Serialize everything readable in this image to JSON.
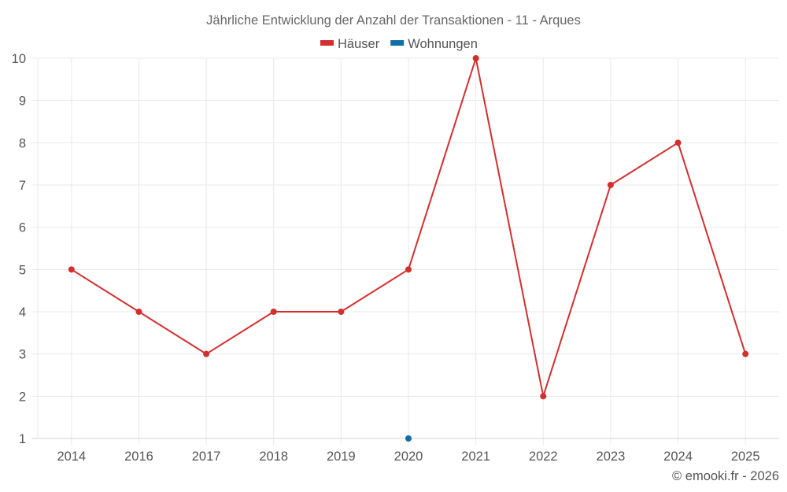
{
  "chart_data": {
    "type": "line",
    "title": "Jährliche Entwicklung der Anzahl der Transaktionen - 11 - Arques",
    "xlabel": "",
    "ylabel": "",
    "categories": [
      "2014",
      "2016",
      "2017",
      "2018",
      "2019",
      "2020",
      "2021",
      "2022",
      "2023",
      "2024",
      "2025"
    ],
    "ylim": [
      1,
      10
    ],
    "yticks": [
      1,
      2,
      3,
      4,
      5,
      6,
      7,
      8,
      9,
      10
    ],
    "grid": true,
    "legend_position": "top-center",
    "series": [
      {
        "name": "Häuser",
        "color": "#d32f2f",
        "values": [
          5,
          4,
          3,
          4,
          4,
          5,
          10,
          2,
          7,
          8,
          3
        ]
      },
      {
        "name": "Wohnungen",
        "color": "#0f6ea8",
        "values": [
          null,
          null,
          null,
          null,
          null,
          1,
          null,
          null,
          null,
          null,
          null
        ]
      }
    ]
  },
  "credit": "© emooki.fr - 2026"
}
